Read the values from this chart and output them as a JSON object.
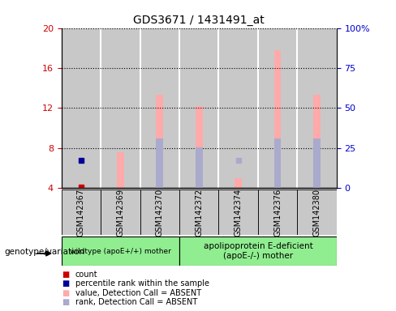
{
  "title": "GDS3671 / 1431491_at",
  "samples": [
    "GSM142367",
    "GSM142369",
    "GSM142370",
    "GSM142372",
    "GSM142374",
    "GSM142376",
    "GSM142380"
  ],
  "left_ylim": [
    4,
    20
  ],
  "right_ylim": [
    0,
    100
  ],
  "left_yticks": [
    4,
    8,
    12,
    16,
    20
  ],
  "right_yticks": [
    0,
    25,
    50,
    75,
    100
  ],
  "right_yticklabels": [
    "0",
    "25",
    "50",
    "75",
    "100%"
  ],
  "pink_bar_values": [
    null,
    7.6,
    13.3,
    12.2,
    5.0,
    17.8,
    13.3
  ],
  "blue_overlay_values": [
    null,
    null,
    9.0,
    8.1,
    null,
    9.0,
    9.0
  ],
  "blue_sq_rank_values": [
    null,
    null,
    null,
    null,
    6.8,
    null,
    null
  ],
  "red_sq_values": [
    4.1,
    null,
    null,
    null,
    null,
    null,
    null
  ],
  "blue_sq_pct_values": [
    6.8,
    null,
    null,
    null,
    null,
    null,
    null
  ],
  "group1_label": "wildtype (apoE+/+) mother",
  "group2_label": "apolipoprotein E-deficient\n(apoE-/-) mother",
  "group1_indices": [
    0,
    1,
    2
  ],
  "group2_indices": [
    3,
    4,
    5,
    6
  ],
  "legend_items": [
    {
      "color": "#cc0000",
      "label": "count"
    },
    {
      "color": "#000099",
      "label": "percentile rank within the sample"
    },
    {
      "color": "#ffaaaa",
      "label": "value, Detection Call = ABSENT"
    },
    {
      "color": "#aaaacc",
      "label": "rank, Detection Call = ABSENT"
    }
  ],
  "left_tick_color": "#cc0000",
  "right_tick_color": "#0000cc",
  "pink_color": "#ffaaaa",
  "blue_bar_color": "#aaaacc",
  "red_sq_color": "#cc0000",
  "blue_sq_color": "#000099",
  "gray_bg": "#c8c8c8",
  "group1_bg": "#90ee90",
  "group2_bg": "#90ee90",
  "white_bg": "#ffffff"
}
